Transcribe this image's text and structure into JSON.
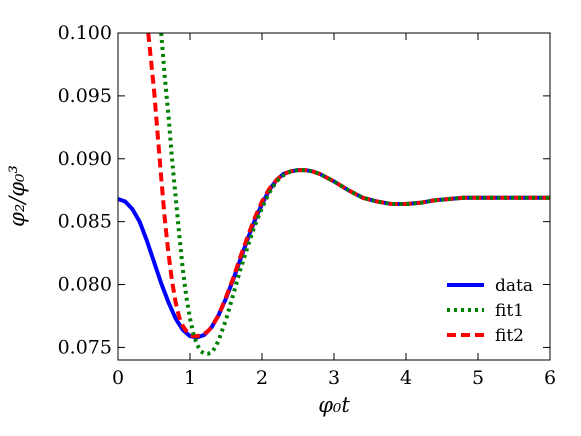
{
  "chart_data": {
    "type": "line",
    "title": "",
    "xlabel": "φ₀t",
    "ylabel": "φ₂/φ₀³",
    "xlim": [
      0,
      6
    ],
    "ylim": [
      0.074,
      0.1
    ],
    "x_ticks": [
      0,
      1,
      2,
      3,
      4,
      5,
      6
    ],
    "y_ticks": [
      0.075,
      0.08,
      0.085,
      0.09,
      0.095,
      0.1
    ],
    "x_tick_labels": [
      "0",
      "1",
      "2",
      "3",
      "4",
      "5",
      "6"
    ],
    "y_tick_labels": [
      "0.075",
      "0.080",
      "0.085",
      "0.090",
      "0.095",
      "0.100"
    ],
    "grid": false,
    "legend_position": "lower right",
    "series": [
      {
        "name": "data",
        "color": "#0000ff",
        "style": "solid",
        "x": [
          0,
          0.1,
          0.2,
          0.3,
          0.4,
          0.5,
          0.6,
          0.7,
          0.8,
          0.9,
          1.0,
          1.1,
          1.2,
          1.3,
          1.4,
          1.5,
          1.6,
          1.7,
          1.8,
          1.9,
          2.0,
          2.1,
          2.2,
          2.3,
          2.4,
          2.5,
          2.6,
          2.7,
          2.8,
          2.9,
          3.0,
          3.2,
          3.4,
          3.6,
          3.8,
          4.0,
          4.2,
          4.4,
          4.6,
          4.8,
          5.0,
          5.2,
          5.4,
          5.6,
          5.8,
          6.0
        ],
        "y": [
          0.0868,
          0.0866,
          0.086,
          0.085,
          0.0835,
          0.0818,
          0.0801,
          0.0786,
          0.0773,
          0.0764,
          0.0759,
          0.0758,
          0.076,
          0.0766,
          0.0776,
          0.0789,
          0.0804,
          0.082,
          0.0836,
          0.0851,
          0.0864,
          0.0875,
          0.0883,
          0.0888,
          0.089,
          0.0891,
          0.0891,
          0.089,
          0.0888,
          0.0885,
          0.0882,
          0.0875,
          0.0869,
          0.0866,
          0.0864,
          0.0864,
          0.0865,
          0.0867,
          0.0868,
          0.0869,
          0.0869,
          0.0869,
          0.0869,
          0.0869,
          0.0869,
          0.0869
        ]
      },
      {
        "name": "fit1",
        "color": "#008000",
        "style": "dotted",
        "x": [
          0.6,
          0.65,
          0.7,
          0.75,
          0.8,
          0.85,
          0.9,
          0.95,
          1.0,
          1.05,
          1.1,
          1.15,
          1.2,
          1.25,
          1.3,
          1.35,
          1.4,
          1.5,
          1.6,
          1.7,
          1.8,
          1.9,
          2.0,
          2.1,
          2.2,
          2.3,
          2.4,
          2.5,
          2.6,
          2.7,
          2.8,
          2.9,
          3.0,
          3.2,
          3.4,
          3.6,
          3.8,
          4.0,
          4.2,
          4.4,
          4.6,
          4.8,
          5.0,
          5.2,
          5.4,
          5.6,
          5.8,
          6.0
        ],
        "y": [
          0.1,
          0.0965,
          0.0935,
          0.09,
          0.087,
          0.084,
          0.0812,
          0.079,
          0.0773,
          0.076,
          0.0752,
          0.0747,
          0.0745,
          0.0745,
          0.0746,
          0.075,
          0.0756,
          0.0772,
          0.0792,
          0.0812,
          0.083,
          0.0847,
          0.0861,
          0.0873,
          0.0882,
          0.0887,
          0.089,
          0.0891,
          0.0891,
          0.089,
          0.0888,
          0.0885,
          0.0882,
          0.0875,
          0.0869,
          0.0866,
          0.0864,
          0.0864,
          0.0865,
          0.0867,
          0.0868,
          0.0869,
          0.0869,
          0.0869,
          0.0869,
          0.0869,
          0.0869,
          0.0869
        ]
      },
      {
        "name": "fit2",
        "color": "#ff0000",
        "style": "dashed",
        "x": [
          0.42,
          0.5,
          0.55,
          0.6,
          0.65,
          0.7,
          0.75,
          0.8,
          0.85,
          0.9,
          0.95,
          1.0,
          1.05,
          1.1,
          1.15,
          1.2,
          1.25,
          1.3,
          1.4,
          1.5,
          1.6,
          1.7,
          1.8,
          1.9,
          2.0,
          2.1,
          2.2,
          2.3,
          2.4,
          2.5,
          2.6,
          2.7,
          2.8,
          2.9,
          3.0,
          3.2,
          3.4,
          3.6,
          3.8,
          4.0,
          4.2,
          4.4,
          4.6,
          4.8,
          5.0,
          5.2,
          5.4,
          5.6,
          5.8,
          6.0
        ],
        "y": [
          0.1,
          0.0955,
          0.092,
          0.0885,
          0.0852,
          0.0825,
          0.0803,
          0.0786,
          0.0774,
          0.0767,
          0.0763,
          0.076,
          0.0759,
          0.0759,
          0.076,
          0.0761,
          0.0763,
          0.0766,
          0.0776,
          0.079,
          0.0805,
          0.0822,
          0.0838,
          0.0853,
          0.0866,
          0.0876,
          0.0883,
          0.0888,
          0.089,
          0.0891,
          0.0891,
          0.089,
          0.0888,
          0.0885,
          0.0882,
          0.0875,
          0.0869,
          0.0866,
          0.0864,
          0.0864,
          0.0865,
          0.0867,
          0.0868,
          0.0869,
          0.0869,
          0.0869,
          0.0869,
          0.0869,
          0.0869,
          0.0869
        ]
      }
    ]
  }
}
